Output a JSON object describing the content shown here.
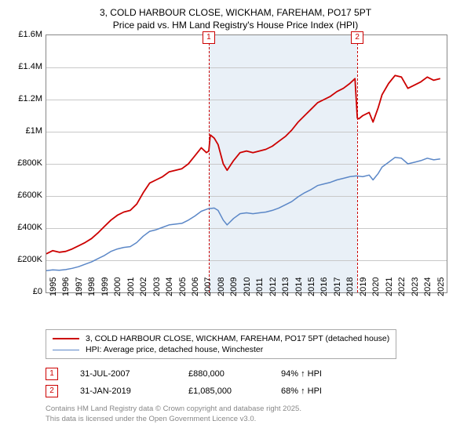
{
  "title": {
    "line1": "3, COLD HARBOUR CLOSE, WICKHAM, FAREHAM, PO17 5PT",
    "line2": "Price paid vs. HM Land Registry's House Price Index (HPI)",
    "fontsize": 12
  },
  "chart": {
    "type": "line",
    "background_color": "#ffffff",
    "grid_color": "#c8c8c8",
    "border_color": "#888888",
    "shade_color": "#e9f0f7",
    "x_domain": [
      1995,
      2026
    ],
    "y_domain": [
      0,
      1600000
    ],
    "y_ticks": [
      0,
      200000,
      400000,
      600000,
      800000,
      1000000,
      1200000,
      1400000,
      1600000
    ],
    "y_tick_labels": [
      "£0",
      "£200K",
      "£400K",
      "£600K",
      "£800K",
      "£1M",
      "£1.2M",
      "£1.4M",
      "£1.6M"
    ],
    "x_ticks": [
      1995,
      1996,
      1997,
      1998,
      1999,
      2000,
      2001,
      2002,
      2003,
      2004,
      2005,
      2006,
      2007,
      2008,
      2009,
      2010,
      2011,
      2012,
      2013,
      2014,
      2015,
      2016,
      2017,
      2018,
      2019,
      2020,
      2021,
      2022,
      2023,
      2024,
      2025
    ],
    "shade_ranges": [
      [
        2007.58,
        2019.08
      ]
    ],
    "series": [
      {
        "name": "price_paid",
        "color": "#cc0000",
        "width": 1.8,
        "data": [
          [
            1995,
            240000
          ],
          [
            1995.5,
            260000
          ],
          [
            1996,
            250000
          ],
          [
            1996.5,
            255000
          ],
          [
            1997,
            270000
          ],
          [
            1997.5,
            290000
          ],
          [
            1998,
            310000
          ],
          [
            1998.5,
            335000
          ],
          [
            1999,
            370000
          ],
          [
            1999.5,
            410000
          ],
          [
            2000,
            450000
          ],
          [
            2000.5,
            480000
          ],
          [
            2001,
            500000
          ],
          [
            2001.5,
            510000
          ],
          [
            2002,
            550000
          ],
          [
            2002.5,
            620000
          ],
          [
            2003,
            680000
          ],
          [
            2003.5,
            700000
          ],
          [
            2004,
            720000
          ],
          [
            2004.5,
            750000
          ],
          [
            2005,
            760000
          ],
          [
            2005.5,
            770000
          ],
          [
            2006,
            800000
          ],
          [
            2006.5,
            850000
          ],
          [
            2007,
            900000
          ],
          [
            2007.4,
            870000
          ],
          [
            2007.58,
            880000
          ],
          [
            2007.7,
            980000
          ],
          [
            2008,
            960000
          ],
          [
            2008.3,
            920000
          ],
          [
            2008.7,
            800000
          ],
          [
            2009,
            760000
          ],
          [
            2009.5,
            820000
          ],
          [
            2010,
            870000
          ],
          [
            2010.5,
            880000
          ],
          [
            2011,
            870000
          ],
          [
            2011.5,
            880000
          ],
          [
            2012,
            890000
          ],
          [
            2012.5,
            910000
          ],
          [
            2013,
            940000
          ],
          [
            2013.5,
            970000
          ],
          [
            2014,
            1010000
          ],
          [
            2014.5,
            1060000
          ],
          [
            2015,
            1100000
          ],
          [
            2015.5,
            1140000
          ],
          [
            2016,
            1180000
          ],
          [
            2016.5,
            1200000
          ],
          [
            2017,
            1220000
          ],
          [
            2017.5,
            1250000
          ],
          [
            2018,
            1270000
          ],
          [
            2018.5,
            1300000
          ],
          [
            2018.9,
            1330000
          ],
          [
            2019.08,
            1085000
          ],
          [
            2019.2,
            1080000
          ],
          [
            2019.5,
            1100000
          ],
          [
            2020,
            1120000
          ],
          [
            2020.3,
            1060000
          ],
          [
            2020.7,
            1150000
          ],
          [
            2021,
            1230000
          ],
          [
            2021.5,
            1300000
          ],
          [
            2022,
            1350000
          ],
          [
            2022.5,
            1340000
          ],
          [
            2023,
            1270000
          ],
          [
            2023.5,
            1290000
          ],
          [
            2024,
            1310000
          ],
          [
            2024.5,
            1340000
          ],
          [
            2025,
            1320000
          ],
          [
            2025.5,
            1330000
          ]
        ]
      },
      {
        "name": "hpi",
        "color": "#5b87c7",
        "width": 1.5,
        "data": [
          [
            1995,
            135000
          ],
          [
            1995.5,
            140000
          ],
          [
            1996,
            138000
          ],
          [
            1996.5,
            142000
          ],
          [
            1997,
            150000
          ],
          [
            1997.5,
            160000
          ],
          [
            1998,
            175000
          ],
          [
            1998.5,
            190000
          ],
          [
            1999,
            210000
          ],
          [
            1999.5,
            230000
          ],
          [
            2000,
            255000
          ],
          [
            2000.5,
            270000
          ],
          [
            2001,
            280000
          ],
          [
            2001.5,
            285000
          ],
          [
            2002,
            310000
          ],
          [
            2002.5,
            350000
          ],
          [
            2003,
            380000
          ],
          [
            2003.5,
            390000
          ],
          [
            2004,
            405000
          ],
          [
            2004.5,
            420000
          ],
          [
            2005,
            425000
          ],
          [
            2005.5,
            430000
          ],
          [
            2006,
            450000
          ],
          [
            2006.5,
            475000
          ],
          [
            2007,
            505000
          ],
          [
            2007.5,
            520000
          ],
          [
            2008,
            525000
          ],
          [
            2008.3,
            510000
          ],
          [
            2008.7,
            450000
          ],
          [
            2009,
            420000
          ],
          [
            2009.5,
            460000
          ],
          [
            2010,
            490000
          ],
          [
            2010.5,
            495000
          ],
          [
            2011,
            490000
          ],
          [
            2011.5,
            495000
          ],
          [
            2012,
            500000
          ],
          [
            2012.5,
            510000
          ],
          [
            2013,
            525000
          ],
          [
            2013.5,
            545000
          ],
          [
            2014,
            565000
          ],
          [
            2014.5,
            595000
          ],
          [
            2015,
            620000
          ],
          [
            2015.5,
            640000
          ],
          [
            2016,
            665000
          ],
          [
            2016.5,
            675000
          ],
          [
            2017,
            685000
          ],
          [
            2017.5,
            700000
          ],
          [
            2018,
            710000
          ],
          [
            2018.5,
            720000
          ],
          [
            2019,
            725000
          ],
          [
            2019.5,
            720000
          ],
          [
            2020,
            730000
          ],
          [
            2020.3,
            700000
          ],
          [
            2020.7,
            740000
          ],
          [
            2021,
            780000
          ],
          [
            2021.5,
            810000
          ],
          [
            2022,
            840000
          ],
          [
            2022.5,
            835000
          ],
          [
            2023,
            800000
          ],
          [
            2023.5,
            810000
          ],
          [
            2024,
            820000
          ],
          [
            2024.5,
            835000
          ],
          [
            2025,
            825000
          ],
          [
            2025.5,
            830000
          ]
        ]
      }
    ],
    "markers": [
      {
        "num": "1",
        "x": 2007.58
      },
      {
        "num": "2",
        "x": 2019.08
      }
    ]
  },
  "legend": {
    "items": [
      {
        "color": "#cc0000",
        "width": 2,
        "label": "3, COLD HARBOUR CLOSE, WICKHAM, FAREHAM, PO17 5PT (detached house)"
      },
      {
        "color": "#5b87c7",
        "width": 1.5,
        "label": "HPI: Average price, detached house, Winchester"
      }
    ]
  },
  "sales": [
    {
      "num": "1",
      "date": "31-JUL-2007",
      "price": "£880,000",
      "pct": "94% ↑ HPI"
    },
    {
      "num": "2",
      "date": "31-JAN-2019",
      "price": "£1,085,000",
      "pct": "68% ↑ HPI"
    }
  ],
  "footer": {
    "line1": "Contains HM Land Registry data © Crown copyright and database right 2025.",
    "line2": "This data is licensed under the Open Government Licence v3.0."
  }
}
